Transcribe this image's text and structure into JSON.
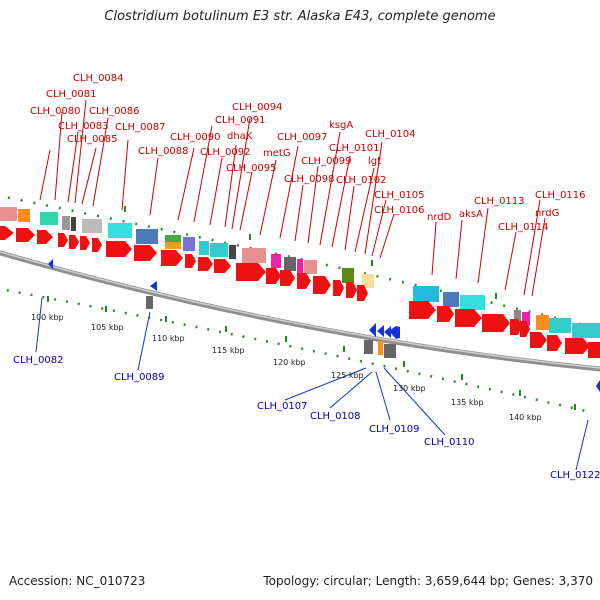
{
  "title": "Clostridium botulinum E3 str. Alaska E43, complete genome",
  "footer": {
    "accession": "Accession: NC_010723",
    "summary": "Topology: circular; Length: 3,659,644 bp; Genes: 3,370"
  },
  "colors": {
    "forward_label": "#cc0000",
    "reverse_label": "#0000bb",
    "forward_arrow": "#ee1111",
    "reverse_arrow": "#1133dd",
    "tick": "#228822",
    "backbone": "#9a9a9a"
  },
  "scale_ticks": [
    {
      "label": "100 kbp"
    },
    {
      "label": "105 kbp"
    },
    {
      "label": "110 kbp"
    },
    {
      "label": "115 kbp"
    },
    {
      "label": "120 kbp"
    },
    {
      "label": "125 kbp"
    },
    {
      "label": "130 kbp"
    },
    {
      "label": "135 kbp"
    },
    {
      "label": "140 kbp"
    }
  ],
  "forward_labels": [
    {
      "text": "CLH_0084"
    },
    {
      "text": "CLH_0081"
    },
    {
      "text": "CLH_0080"
    },
    {
      "text": "CLH_0086"
    },
    {
      "text": "CLH_0083"
    },
    {
      "text": "CLH_0087"
    },
    {
      "text": "CLH_0085"
    },
    {
      "text": "CLH_0088"
    },
    {
      "text": "CLH_0094"
    },
    {
      "text": "CLH_0091"
    },
    {
      "text": "CLH_0090"
    },
    {
      "text": "dhaK"
    },
    {
      "text": "CLH_0092"
    },
    {
      "text": "metG"
    },
    {
      "text": "CLH_0095"
    },
    {
      "text": "ksgA"
    },
    {
      "text": "CLH_0097"
    },
    {
      "text": "CLH_0104"
    },
    {
      "text": "CLH_0101"
    },
    {
      "text": "CLH_0099"
    },
    {
      "text": "lgt"
    },
    {
      "text": "CLH_0098"
    },
    {
      "text": "CLH_0102"
    },
    {
      "text": "CLH_0105"
    },
    {
      "text": "CLH_0106"
    },
    {
      "text": "nrdD"
    },
    {
      "text": "aksA"
    },
    {
      "text": "CLH_0113"
    },
    {
      "text": "CLH_0116"
    },
    {
      "text": "nrdG"
    },
    {
      "text": "CLH_0114"
    }
  ],
  "reverse_labels": [
    {
      "text": "CLH_0082"
    },
    {
      "text": "CLH_0089"
    },
    {
      "text": "CLH_0107"
    },
    {
      "text": "CLH_0108"
    },
    {
      "text": "CLH_0109"
    },
    {
      "text": "CLH_0110"
    },
    {
      "text": "CLH_0122"
    }
  ]
}
